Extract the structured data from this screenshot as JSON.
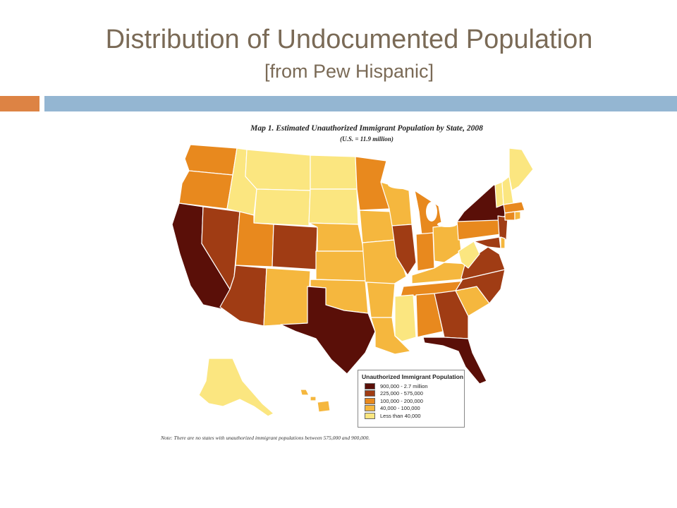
{
  "slide": {
    "title": "Distribution of Undocumented Population",
    "subtitle": "[from Pew Hispanic]"
  },
  "map": {
    "title": "Map 1. Estimated Unauthorized Immigrant Population by State, 2008",
    "subtitle": "(U.S. = 11.9 million)",
    "note": "Note: There are no states with unauthorized immigrant populations between 575,000 and 900,000.",
    "legend": {
      "title": "Unauthorized Immigrant Population",
      "items": [
        {
          "label": "900,000 - 2.7 million",
          "color": "#5a0f08"
        },
        {
          "label": "225,000 - 575,000",
          "color": "#a03c14"
        },
        {
          "label": "100,000 - 200,000",
          "color": "#e8891e"
        },
        {
          "label": "40,000 - 100,000",
          "color": "#f5b73e"
        },
        {
          "label": "Less than 40,000",
          "color": "#fbe680"
        }
      ]
    },
    "colors": {
      "c1": "#5a0f08",
      "c2": "#a03c14",
      "c3": "#e8891e",
      "c4": "#f5b73e",
      "c5": "#fbe680",
      "border": "#ffffff",
      "outline": "#3a2a1a"
    }
  }
}
